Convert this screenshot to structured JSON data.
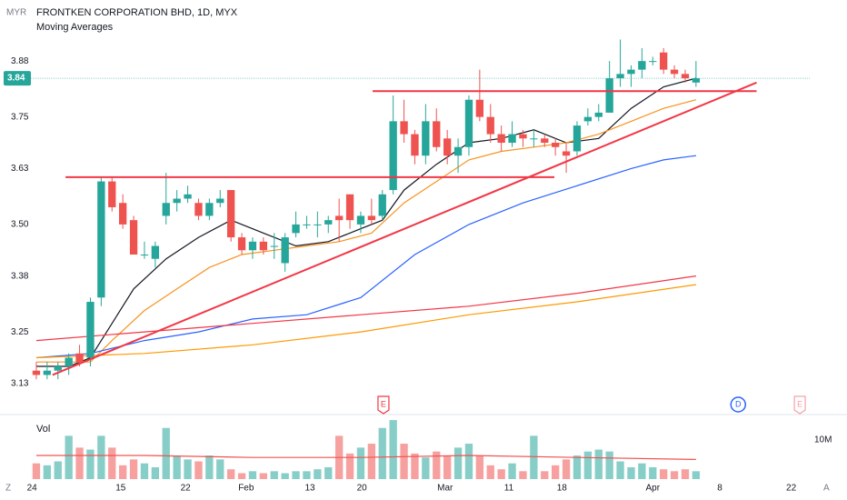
{
  "chart_data": {
    "type": "candlestick",
    "currency": "MYR",
    "title": "FRONTKEN CORPORATION BHD, 1D, MYX",
    "subtitle": "Moving Averages",
    "volume_label": "Vol",
    "corner_left": "Z",
    "corner_right": "A",
    "last_price": 3.84,
    "up_color": "#26a69a",
    "down_color": "#ef5350",
    "xlim": [
      -0.5,
      71.6
    ],
    "ylim": [
      3.06,
      4.022
    ],
    "yticks": [
      3.13,
      3.25,
      3.38,
      {
        "value": 3.5,
        "label": "3.50"
      },
      3.63,
      3.75,
      3.88
    ],
    "xticks": [
      {
        "value": -0.4,
        "label": "24"
      },
      {
        "value": 7.8,
        "label": "15"
      },
      {
        "value": 13.8,
        "label": "22"
      },
      {
        "value": 19.4,
        "label": "Feb"
      },
      {
        "value": 25.3,
        "label": "13"
      },
      {
        "value": 30.1,
        "label": "20"
      },
      {
        "value": 37.8,
        "label": "Mar"
      },
      {
        "value": 43.7,
        "label": "11"
      },
      {
        "value": 48.6,
        "label": "18"
      },
      {
        "value": 57.0,
        "label": "Apr"
      },
      {
        "value": 63.2,
        "label": "8"
      },
      {
        "value": 69.8,
        "label": "22"
      }
    ],
    "x": [
      0,
      1,
      2,
      3,
      4,
      5,
      6,
      7,
      8,
      9,
      10,
      11,
      12,
      13,
      14,
      15,
      16,
      17,
      18,
      19,
      20,
      21,
      22,
      23,
      24,
      25,
      26,
      27,
      28,
      29,
      30,
      31,
      32,
      33,
      34,
      35,
      36,
      37,
      38,
      39,
      40,
      41,
      42,
      43,
      44,
      45,
      46,
      47,
      48,
      49,
      50,
      51,
      52,
      53,
      54,
      55,
      56,
      57,
      58,
      59,
      60,
      61
    ],
    "open": [
      3.16,
      3.15,
      3.16,
      3.17,
      3.2,
      3.19,
      3.33,
      3.6,
      3.55,
      3.51,
      3.43,
      3.42,
      3.52,
      3.55,
      3.56,
      3.55,
      3.52,
      3.55,
      3.58,
      3.47,
      3.44,
      3.46,
      3.45,
      3.41,
      3.48,
      3.5,
      3.5,
      3.5,
      3.52,
      3.57,
      3.5,
      3.52,
      3.52,
      3.58,
      3.74,
      3.71,
      3.66,
      3.74,
      3.7,
      3.66,
      3.68,
      3.79,
      3.75,
      3.71,
      3.69,
      3.71,
      3.7,
      3.7,
      3.69,
      3.67,
      3.67,
      3.74,
      3.75,
      3.76,
      3.84,
      3.85,
      3.86,
      3.88,
      3.9,
      3.86,
      3.85,
      3.83
    ],
    "high": [
      3.18,
      3.18,
      3.18,
      3.2,
      3.22,
      3.33,
      3.61,
      3.61,
      3.57,
      3.52,
      3.46,
      3.46,
      3.62,
      3.58,
      3.59,
      3.56,
      3.56,
      3.58,
      3.58,
      3.48,
      3.47,
      3.47,
      3.48,
      3.48,
      3.53,
      3.52,
      3.53,
      3.52,
      3.56,
      3.57,
      3.53,
      3.56,
      3.58,
      3.8,
      3.79,
      3.72,
      3.78,
      3.77,
      3.72,
      3.7,
      3.8,
      3.86,
      3.78,
      3.73,
      3.74,
      3.72,
      3.72,
      3.71,
      3.7,
      3.69,
      3.74,
      3.77,
      3.78,
      3.88,
      3.93,
      3.87,
      3.91,
      3.89,
      3.91,
      3.87,
      3.86,
      3.88
    ],
    "low": [
      3.14,
      3.14,
      3.14,
      3.15,
      3.17,
      3.17,
      3.31,
      3.53,
      3.49,
      3.43,
      3.42,
      3.4,
      3.5,
      3.53,
      3.55,
      3.51,
      3.51,
      3.54,
      3.46,
      3.43,
      3.42,
      3.43,
      3.42,
      3.39,
      3.47,
      3.49,
      3.47,
      3.48,
      3.46,
      3.49,
      3.48,
      3.5,
      3.51,
      3.57,
      3.69,
      3.64,
      3.64,
      3.67,
      3.64,
      3.62,
      3.66,
      3.74,
      3.69,
      3.67,
      3.68,
      3.68,
      3.68,
      3.68,
      3.66,
      3.62,
      3.66,
      3.73,
      3.74,
      3.76,
      3.82,
      3.82,
      3.84,
      3.87,
      3.85,
      3.84,
      3.83,
      3.82
    ],
    "close": [
      3.15,
      3.16,
      3.17,
      3.19,
      3.18,
      3.32,
      3.6,
      3.54,
      3.5,
      3.43,
      3.43,
      3.45,
      3.55,
      3.56,
      3.57,
      3.52,
      3.55,
      3.56,
      3.47,
      3.44,
      3.46,
      3.44,
      3.45,
      3.47,
      3.5,
      3.5,
      3.5,
      3.51,
      3.51,
      3.51,
      3.52,
      3.51,
      3.57,
      3.74,
      3.71,
      3.66,
      3.74,
      3.68,
      3.66,
      3.68,
      3.79,
      3.75,
      3.71,
      3.69,
      3.71,
      3.7,
      3.7,
      3.69,
      3.68,
      3.66,
      3.73,
      3.75,
      3.76,
      3.84,
      3.85,
      3.86,
      3.88,
      3.88,
      3.86,
      3.85,
      3.84,
      3.84
    ],
    "volume": [
      4000000,
      3500000,
      4500000,
      11000000,
      8000000,
      7500000,
      11000000,
      8000000,
      3500000,
      5000000,
      4000000,
      3000000,
      13000000,
      6000000,
      5000000,
      4500000,
      6000000,
      5000000,
      2500000,
      1500000,
      2000000,
      1500000,
      2000000,
      1500000,
      2000000,
      2000000,
      2500000,
      3000000,
      11000000,
      6500000,
      8000000,
      9000000,
      13000000,
      15000000,
      9000000,
      6500000,
      5500000,
      7000000,
      6000000,
      8000000,
      9000000,
      6000000,
      3500000,
      2500000,
      4000000,
      2000000,
      11000000,
      2000000,
      3500000,
      5000000,
      6000000,
      7000000,
      7500000,
      7000000,
      4500000,
      3000000,
      4000000,
      3000000,
      2500000,
      2000000,
      2500000,
      2000000
    ],
    "vlim": [
      0,
      16400000
    ],
    "vticks": [
      {
        "value": 10000000,
        "label": "10M"
      }
    ],
    "volume_ma": {
      "color": "#ef5350",
      "x": [
        0,
        10,
        20,
        30,
        40,
        50,
        61
      ],
      "values": [
        6000000,
        6000000,
        5500000,
        5500000,
        6000000,
        5500000,
        5000000
      ]
    },
    "series": [
      {
        "color": "#131722",
        "x": [
          0,
          3,
          5,
          7,
          9,
          12,
          15,
          18,
          21,
          24,
          27,
          30,
          32,
          34,
          37,
          40,
          43,
          46,
          49,
          52,
          55,
          58,
          61
        ],
        "values": [
          3.17,
          3.17,
          3.19,
          3.27,
          3.35,
          3.42,
          3.47,
          3.51,
          3.48,
          3.45,
          3.46,
          3.49,
          3.51,
          3.58,
          3.64,
          3.69,
          3.7,
          3.72,
          3.69,
          3.7,
          3.77,
          3.82,
          3.84
        ]
      },
      {
        "color": "#f7931e",
        "x": [
          0,
          5,
          7,
          10,
          13,
          16,
          19,
          22,
          25,
          28,
          31,
          34,
          37,
          40,
          43,
          46,
          49,
          52,
          55,
          58,
          61
        ],
        "values": [
          3.18,
          3.18,
          3.23,
          3.3,
          3.35,
          3.4,
          3.43,
          3.44,
          3.45,
          3.46,
          3.48,
          3.55,
          3.6,
          3.65,
          3.67,
          3.68,
          3.69,
          3.71,
          3.74,
          3.77,
          3.79
        ]
      },
      {
        "color": "#2962ff",
        "x": [
          0,
          5,
          10,
          15,
          20,
          25,
          30,
          35,
          40,
          45,
          50,
          55,
          58,
          61
        ],
        "values": [
          3.19,
          3.2,
          3.23,
          3.25,
          3.28,
          3.29,
          3.33,
          3.43,
          3.5,
          3.55,
          3.59,
          3.63,
          3.65,
          3.66
        ]
      },
      {
        "color": "#f23645",
        "x": [
          0,
          10,
          20,
          30,
          40,
          50,
          61
        ],
        "values": [
          3.23,
          3.25,
          3.27,
          3.29,
          3.31,
          3.34,
          3.38
        ]
      },
      {
        "color": "#ff9800",
        "x": [
          0,
          10,
          20,
          30,
          40,
          50,
          61
        ],
        "values": [
          3.19,
          3.2,
          3.22,
          3.25,
          3.29,
          3.32,
          3.36
        ]
      }
    ],
    "drawings": [
      {
        "color": "#f23645",
        "x": [
          2.7,
          47.9
        ],
        "values": [
          3.61,
          3.61
        ]
      },
      {
        "color": "#f23645",
        "x": [
          31.1,
          66.6
        ],
        "values": [
          3.81,
          3.81
        ]
      },
      {
        "color": "#f23645",
        "x": [
          1.5,
          66.6
        ],
        "values": [
          3.15,
          3.83
        ]
      }
    ],
    "events": [
      {
        "label": "E",
        "x": 32.1,
        "color": "#f23645"
      },
      {
        "label": "D",
        "x": 64.9,
        "color": "#2962ff"
      },
      {
        "label": "E",
        "x": 70.6,
        "color": "#f7a1a8"
      }
    ]
  }
}
